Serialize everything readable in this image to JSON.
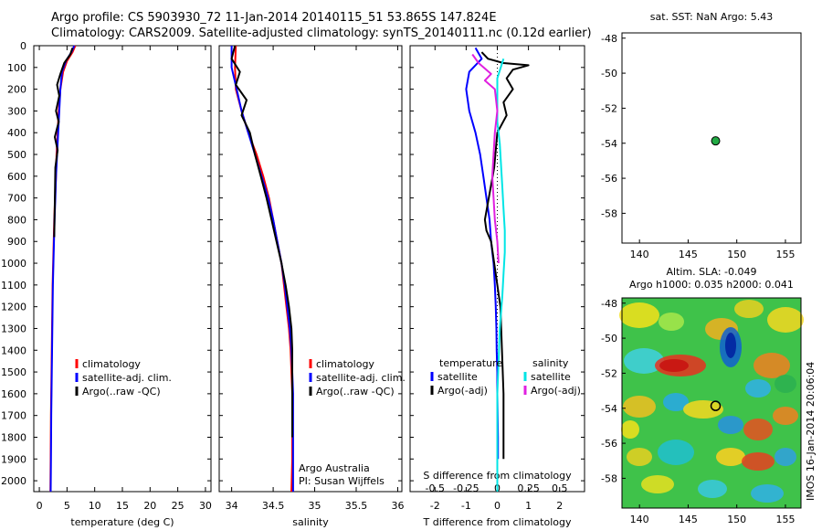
{
  "title": {
    "line1": "Argo profile: CS 5903930_72 11-Jan-2014 20140115_51 53.865S 147.824E",
    "line2": "Climatology: CARS2009. Satellite-adjusted climatology: synTS_20140111.nc (0.12d earlier)"
  },
  "depth_ticks": [
    "0",
    "100",
    "200",
    "300",
    "400",
    "500",
    "600",
    "700",
    "800",
    "900",
    "1000",
    "1100",
    "1200",
    "1300",
    "1400",
    "1500",
    "1600",
    "1700",
    "1800",
    "1900",
    "2000"
  ],
  "colors": {
    "climatology": "#ff0000",
    "satellite": "#0000ff",
    "argo": "#000000",
    "salinity_satellite": "#00e5e5",
    "salinity_argo": "#e020e0",
    "float_marker": "#22aa44"
  },
  "panels": {
    "temperature": {
      "xlabel": "temperature (deg C)",
      "xticks": [
        "0",
        "5",
        "10",
        "15",
        "20",
        "25",
        "30"
      ],
      "legend": [
        "climatology",
        "satellite-adj. clim.",
        "Argo(..raw -QC)"
      ]
    },
    "salinity": {
      "xlabel": "salinity",
      "xticks": [
        "34",
        "34.5",
        "35",
        "35.5",
        "36"
      ],
      "legend": [
        "climatology",
        "satellite-adj. clim.",
        "Argo(..raw -QC)"
      ],
      "note1": "Argo Australia",
      "note2": "PI: Susan Wijffels"
    },
    "difference": {
      "xlabel_top": "S difference from climatology",
      "xlabel_bottom": "T difference from climatology",
      "xticks_s": [
        "-0.5",
        "-0.25",
        "0",
        "0.25",
        "0.5"
      ],
      "xticks_t": [
        "-2",
        "-1",
        "0",
        "1",
        "2"
      ],
      "legend_t_header": "temperature",
      "legend_t": [
        "satellite",
        "Argo(-adj)"
      ],
      "legend_s_header": "salinity",
      "legend_s": [
        "satellite",
        "Argo(-adj)"
      ]
    },
    "sst_map": {
      "title": "sat. SST: NaN Argo: 5.43",
      "yticks": [
        "-48",
        "-50",
        "-52",
        "-54",
        "-56",
        "-58"
      ],
      "xticks": [
        "140",
        "145",
        "150",
        "155"
      ]
    },
    "sla_map": {
      "title1": "Altim. SLA: -0.049",
      "title2": "Argo h1000: 0.035 h2000: 0.041",
      "yticks": [
        "-48",
        "-50",
        "-52",
        "-54",
        "-56",
        "-58"
      ],
      "xticks": [
        "140",
        "145",
        "150",
        "155"
      ],
      "side_label": "IMOS 16-Jan-2014 20:06:04"
    }
  },
  "chart_data": [
    {
      "type": "line",
      "name": "temperature",
      "xlim": [
        -1,
        31
      ],
      "ylim": [
        2050,
        0
      ],
      "series": [
        {
          "name": "climatology",
          "x": [
            6.5,
            6.0,
            5.0,
            4.3,
            3.8,
            3.5,
            3.3,
            3.1,
            3.0,
            2.85,
            2.7,
            2.6,
            2.5,
            2.4,
            2.35,
            2.3,
            2.25,
            2.2,
            2.15,
            2.1,
            2.05,
            2.0
          ],
          "y": [
            0,
            30,
            70,
            120,
            200,
            300,
            400,
            500,
            600,
            700,
            800,
            900,
            1000,
            1100,
            1200,
            1300,
            1400,
            1500,
            1600,
            1700,
            1900,
            2050
          ]
        },
        {
          "name": "satellite-adj. clim.",
          "x": [
            6.3,
            5.8,
            4.8,
            4.1,
            3.8,
            3.6,
            3.4,
            3.2,
            3.0,
            2.9,
            2.75,
            2.65,
            2.55,
            2.45,
            2.4,
            2.35,
            2.3,
            2.25,
            2.2,
            2.15,
            2.1,
            2.05
          ],
          "y": [
            0,
            30,
            70,
            120,
            200,
            300,
            400,
            500,
            600,
            700,
            800,
            900,
            1000,
            1100,
            1200,
            1300,
            1400,
            1500,
            1600,
            1700,
            1900,
            2050
          ]
        },
        {
          "name": "Argo(..raw -QC)",
          "x": [
            6.0,
            5.6,
            4.5,
            3.8,
            3.2,
            3.6,
            3.0,
            3.5,
            2.8,
            3.3,
            2.9,
            2.7
          ],
          "y": [
            10,
            40,
            80,
            130,
            180,
            230,
            300,
            350,
            420,
            480,
            560,
            880
          ]
        }
      ]
    },
    {
      "type": "line",
      "name": "salinity",
      "xlim": [
        33.85,
        36.05
      ],
      "ylim": [
        2050,
        0
      ],
      "series": [
        {
          "name": "climatology",
          "x": [
            34.05,
            34.04,
            34.05,
            34.12,
            34.2,
            34.3,
            34.38,
            34.45,
            34.5,
            34.55,
            34.6,
            34.63,
            34.66,
            34.69,
            34.71,
            34.72,
            34.73,
            34.73,
            34.73,
            34.73,
            34.72
          ],
          "y": [
            0,
            100,
            200,
            300,
            400,
            500,
            600,
            700,
            800,
            900,
            1000,
            1100,
            1200,
            1300,
            1400,
            1500,
            1600,
            1700,
            1800,
            1900,
            2050
          ]
        },
        {
          "name": "satellite-adj. clim.",
          "x": [
            34.0,
            34.0,
            34.06,
            34.12,
            34.2,
            34.28,
            34.36,
            34.44,
            34.5,
            34.55,
            34.6,
            34.64,
            34.67,
            34.7,
            34.72,
            34.73,
            34.74,
            34.74,
            34.74,
            34.74,
            34.74
          ],
          "y": [
            0,
            100,
            200,
            300,
            400,
            500,
            600,
            700,
            800,
            900,
            1000,
            1100,
            1200,
            1300,
            1400,
            1500,
            1600,
            1700,
            1800,
            1900,
            2050
          ]
        },
        {
          "name": "Argo(..raw -QC)",
          "x": [
            34.04,
            34.0,
            34.1,
            34.05,
            34.18,
            34.12,
            34.22,
            34.28,
            34.35,
            34.42,
            34.48,
            34.54,
            34.6,
            34.65,
            34.69,
            34.72,
            34.73,
            34.73,
            34.73
          ],
          "y": [
            0,
            60,
            120,
            180,
            250,
            320,
            400,
            500,
            600,
            700,
            800,
            900,
            1000,
            1100,
            1200,
            1300,
            1400,
            1600,
            1800
          ]
        }
      ]
    },
    {
      "type": "line",
      "name": "difference",
      "xlim_t": [
        -2.8,
        2.8
      ],
      "xlim_s": [
        -0.7,
        0.7
      ],
      "ylim": [
        2050,
        0
      ],
      "series": [
        {
          "name": "temperature satellite",
          "axis": "T",
          "x": [
            -0.7,
            -0.5,
            -0.9,
            -1.0,
            -0.9,
            -0.7,
            -0.55,
            -0.45,
            -0.35,
            -0.25,
            -0.2,
            -0.12,
            -0.08,
            -0.05,
            -0.03,
            -0.02,
            0.0,
            0.0,
            0.02,
            0.02
          ],
          "y": [
            10,
            60,
            120,
            200,
            300,
            400,
            500,
            600,
            700,
            800,
            900,
            1000,
            1100,
            1200,
            1300,
            1400,
            1500,
            1600,
            1800,
            1900
          ]
        },
        {
          "name": "temperature Argo(-adj)",
          "x": [
            -0.5,
            -0.3,
            0.2,
            1.0,
            0.5,
            0.3,
            0.5,
            0.2,
            0.3,
            0.0,
            -0.05,
            -0.1,
            -0.2,
            -0.3,
            -0.4,
            -0.35,
            -0.2,
            -0.1,
            0.1,
            0.15,
            0.2,
            0.2
          ],
          "axis": "T",
          "y": [
            30,
            60,
            80,
            90,
            110,
            150,
            200,
            260,
            320,
            400,
            480,
            560,
            640,
            720,
            800,
            850,
            900,
            1000,
            1200,
            1400,
            1600,
            1900
          ]
        },
        {
          "name": "salinity satellite",
          "axis": "S",
          "x": [
            0.05,
            0.0,
            0.0,
            0.0,
            0.02,
            0.03,
            0.04,
            0.05,
            0.06,
            0.06,
            0.05,
            0.04,
            0.02,
            0.01,
            0.0,
            0.0,
            0.0,
            0.0,
            0.0
          ],
          "y": [
            60,
            150,
            250,
            350,
            450,
            550,
            650,
            750,
            850,
            950,
            1050,
            1150,
            1300,
            1450,
            1600,
            1700,
            1800,
            1900,
            2050
          ]
        },
        {
          "name": "salinity Argo(-adj)",
          "axis": "S",
          "x": [
            -0.2,
            -0.15,
            -0.05,
            -0.1,
            -0.02,
            0.0,
            -0.02,
            -0.03,
            -0.04,
            -0.03,
            -0.02,
            0.0,
            0.01
          ],
          "y": [
            40,
            80,
            130,
            160,
            200,
            300,
            400,
            500,
            600,
            700,
            800,
            900,
            1000
          ]
        }
      ]
    }
  ]
}
